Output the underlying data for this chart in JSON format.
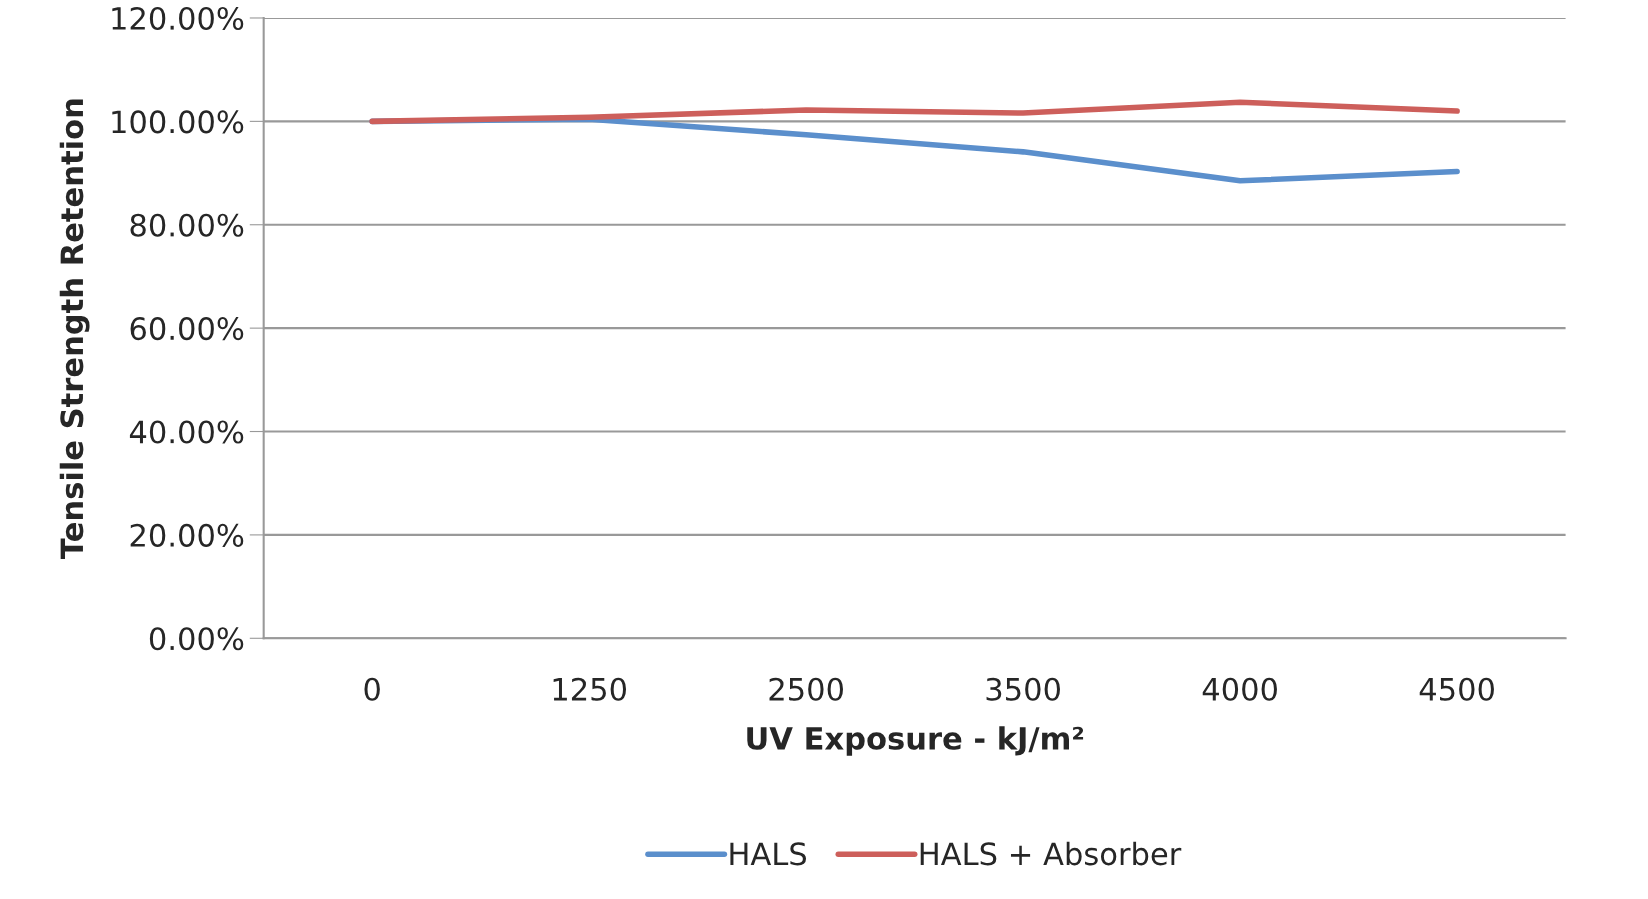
{
  "chart_data": {
    "type": "line",
    "xlabel": "UV Exposure - kJ/m²",
    "ylabel": "Tensile Strength Retention",
    "categories": [
      "0",
      "1250",
      "2500",
      "3500",
      "4000",
      "4500"
    ],
    "series": [
      {
        "name": "HALS",
        "color": "#5b8fcc",
        "values": [
          100.0,
          100.4,
          97.4,
          94.1,
          88.5,
          90.3
        ]
      },
      {
        "name": "HALS + Absorber",
        "color": "#cd5f5b",
        "values": [
          100.0,
          100.8,
          102.2,
          101.6,
          103.7,
          102.0
        ]
      }
    ],
    "ylim": [
      0,
      120
    ],
    "yticks": [
      {
        "value": 0,
        "label": "0.00%"
      },
      {
        "value": 20,
        "label": "20.00%"
      },
      {
        "value": 40,
        "label": "40.00%"
      },
      {
        "value": 60,
        "label": "60.00%"
      },
      {
        "value": 80,
        "label": "80.00%"
      },
      {
        "value": 100,
        "label": "100.00%"
      },
      {
        "value": 120,
        "label": "120.00%"
      }
    ],
    "grid": "y",
    "legend": "bottom",
    "marker": "none",
    "line_style": "solid"
  }
}
